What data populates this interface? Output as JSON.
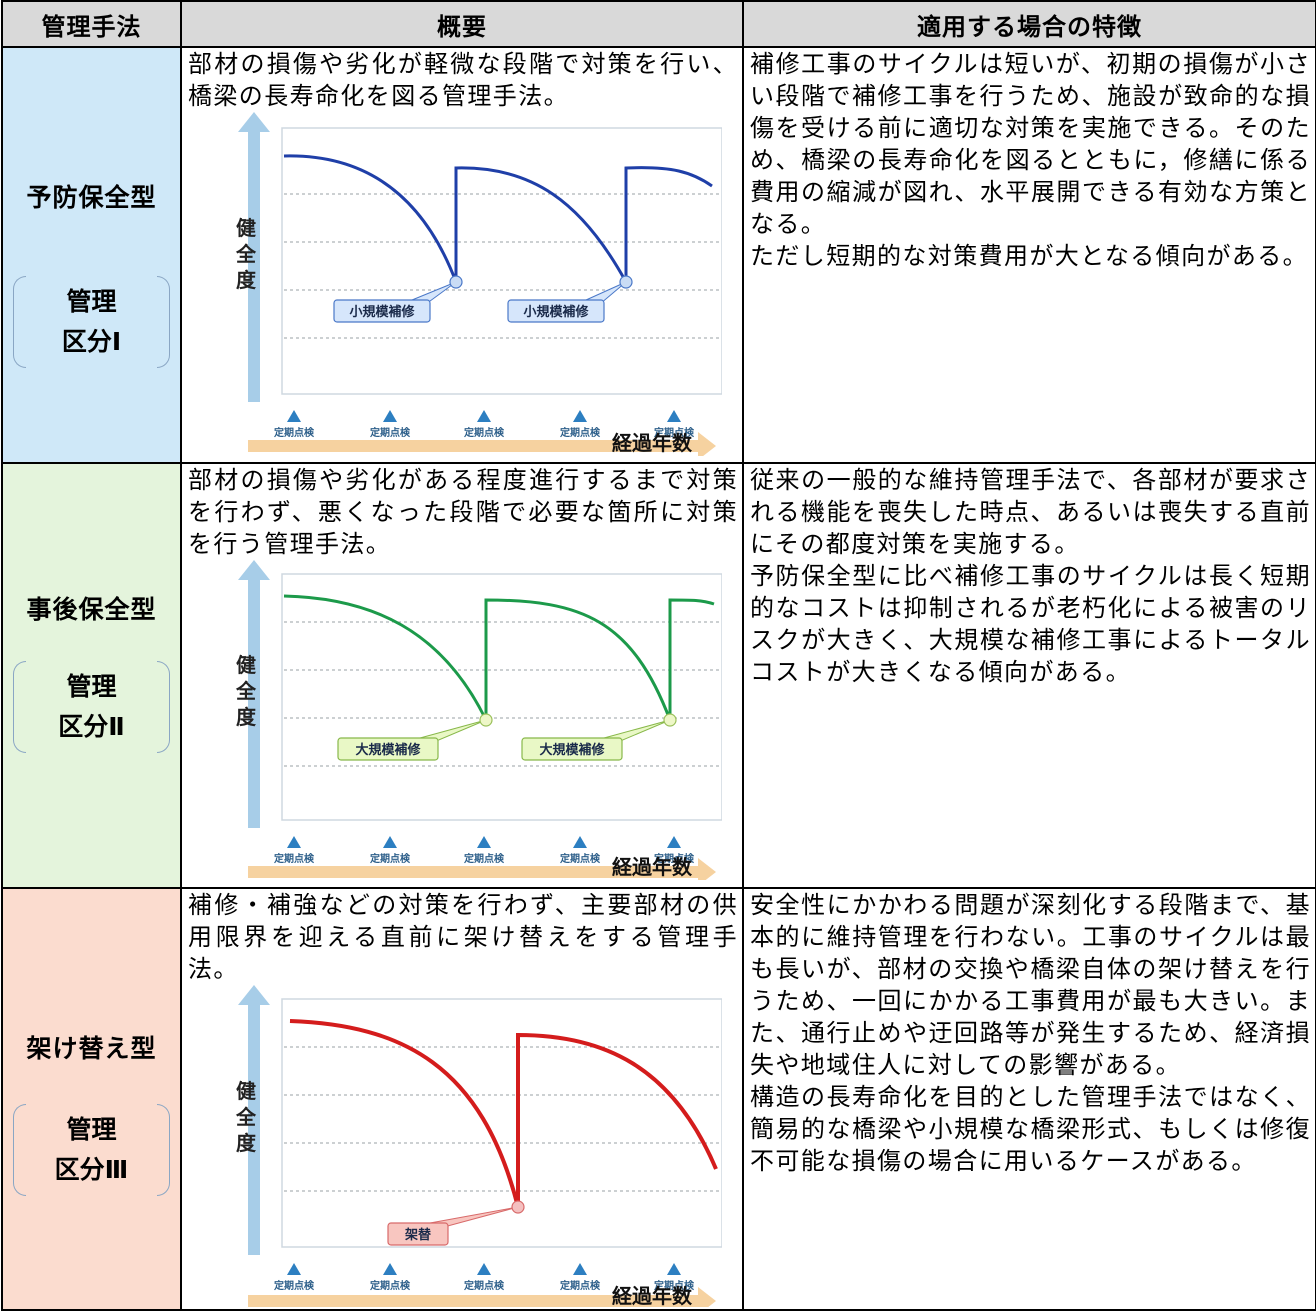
{
  "headers": {
    "method": "管理手法",
    "overview": "概要",
    "features": "適用する場合の特徴"
  },
  "rows": [
    {
      "method": "予防保全型",
      "class_line1": "管理",
      "class_line2": "区分Ⅰ",
      "overview": "部材の損傷や劣化が軽微な段階で対策を行い、橋梁の長寿命化を図る管理手法。",
      "features": [
        "補修工事のサイクルは短いが、初期の損傷が小さい段階で補修工事を行うため、施設が致命的な損傷を受ける前に適切な対策を実施できる。そのため、橋梁の長寿命化を図るとともに，修繕に係る費用の縮減が図れ、水平展開できる有効な方策となる。",
        "ただし短期的な対策費用が大となる傾向がある。"
      ],
      "chart": {
        "y_axis": "健全度",
        "x_axis": "経過年数",
        "tick_label": "定期点検",
        "callouts": [
          "小規模補修",
          "小規模補修"
        ],
        "line_color": "#1f3fa8",
        "callout_fill": "#d6e6fb",
        "callout_stroke": "#4a78c8",
        "dot_fill": "#c9dcf5",
        "dot_stroke": "#4a78c8"
      }
    },
    {
      "method": "事後保全型",
      "class_line1": "管理",
      "class_line2": "区分Ⅱ",
      "overview": "部材の損傷や劣化がある程度進行するまで対策を行わず、悪くなった段階で必要な箇所に対策を行う管理手法。",
      "features": [
        "従来の一般的な維持管理手法で、各部材が要求される機能を喪失した時点、あるいは喪失する直前にその都度対策を実施する。",
        "予防保全型に比べ補修工事のサイクルは長く短期的なコストは抑制されるが老朽化による被害のリスクが大きく、大規模な補修工事によるトータルコストが大きくなる傾向がある。"
      ],
      "chart": {
        "y_axis": "健全度",
        "x_axis": "経過年数",
        "tick_label": "定期点検",
        "callouts": [
          "大規模補修",
          "大規模補修"
        ],
        "line_color": "#1c9a4a",
        "callout_fill": "#e9f8c6",
        "callout_stroke": "#88b84a",
        "dot_fill": "#eef7c8",
        "dot_stroke": "#9ac05a"
      }
    },
    {
      "method": "架け替え型",
      "class_line1": "管理",
      "class_line2": "区分Ⅲ",
      "overview": "補修・補強などの対策を行わず、主要部材の供用限界を迎える直前に架け替えをする管理手法。",
      "features": [
        "安全性にかかわる問題が深刻化する段階まで、基本的に維持管理を行わない。工事のサイクルは最も長いが、部材の交換や橋梁自体の架け替えを行うため、一回にかかる工事費用が最も大きい。また、通行止めや迂回路等が発生するため、経済損失や地域住人に対しての影響がある。",
        "構造の長寿命化を目的とした管理手法ではなく、簡易的な橋梁や小規模な橋梁形式、もしくは修復不可能な損傷の場合に用いるケースがある。"
      ],
      "chart": {
        "y_axis": "健全度",
        "x_axis": "経過年数",
        "tick_label": "定期点検",
        "callouts": [
          "架替"
        ],
        "line_color": "#d41c1c",
        "callout_fill": "#f8c6c0",
        "callout_stroke": "#d86a6a",
        "dot_fill": "#f4c0c0",
        "dot_stroke": "#d86a6a"
      }
    }
  ]
}
